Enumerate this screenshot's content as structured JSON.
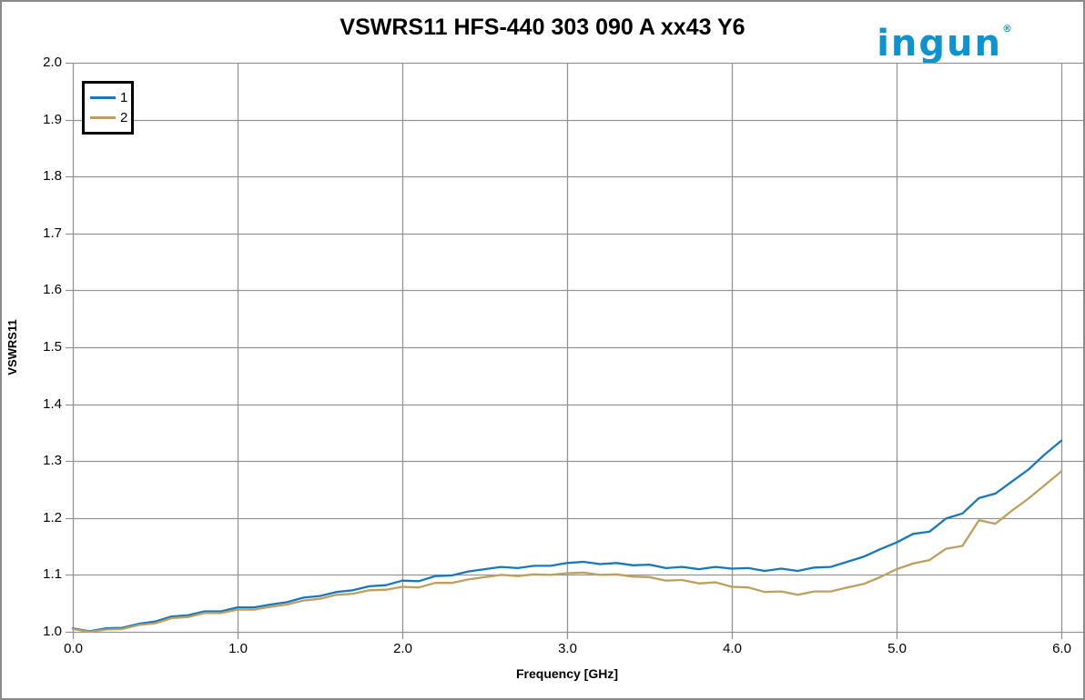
{
  "logo": {
    "text": "ingun",
    "registered_mark": "®",
    "color": "#0E93D1"
  },
  "chart_data": {
    "type": "line",
    "title": "VSWRS11 HFS-440 303 090 A xx43 Y6",
    "xlabel": "Frequency [GHz]",
    "ylabel": "VSWRS11",
    "xlim": [
      0.0,
      6.0
    ],
    "ylim": [
      1.0,
      2.0
    ],
    "x_ticks": [
      "0.0",
      "1.0",
      "2.0",
      "3.0",
      "4.0",
      "5.0",
      "6.0"
    ],
    "y_ticks": [
      "1.0",
      "1.1",
      "1.2",
      "1.3",
      "1.4",
      "1.5",
      "1.6",
      "1.7",
      "1.8",
      "1.9",
      "2.0"
    ],
    "grid": true,
    "grid_color": "#949494",
    "legend_position": "top-left",
    "x": [
      0.0,
      0.1,
      0.2,
      0.3,
      0.4,
      0.5,
      0.6,
      0.7,
      0.8,
      0.9,
      1.0,
      1.1,
      1.2,
      1.3,
      1.4,
      1.5,
      1.6,
      1.7,
      1.8,
      1.9,
      2.0,
      2.1,
      2.2,
      2.3,
      2.4,
      2.5,
      2.6,
      2.7,
      2.8,
      2.9,
      3.0,
      3.1,
      3.2,
      3.3,
      3.4,
      3.5,
      3.6,
      3.7,
      3.8,
      3.9,
      4.0,
      4.1,
      4.2,
      4.3,
      4.4,
      4.5,
      4.6,
      4.7,
      4.8,
      4.9,
      5.0,
      5.1,
      5.2,
      5.3,
      5.4,
      5.5,
      5.6,
      5.7,
      5.8,
      5.9,
      6.0
    ],
    "series": [
      {
        "name": "1",
        "color": "#1878BD",
        "values": [
          1.006,
          1.001,
          1.006,
          1.007,
          1.014,
          1.018,
          1.027,
          1.029,
          1.036,
          1.036,
          1.043,
          1.043,
          1.048,
          1.052,
          1.06,
          1.063,
          1.07,
          1.073,
          1.08,
          1.082,
          1.09,
          1.089,
          1.098,
          1.099,
          1.106,
          1.11,
          1.114,
          1.112,
          1.116,
          1.116,
          1.121,
          1.123,
          1.119,
          1.121,
          1.117,
          1.118,
          1.112,
          1.114,
          1.11,
          1.114,
          1.111,
          1.112,
          1.107,
          1.111,
          1.107,
          1.113,
          1.114,
          1.123,
          1.132,
          1.145,
          1.157,
          1.172,
          1.176,
          1.199,
          1.208,
          1.235,
          1.243,
          1.264,
          1.285,
          1.312,
          1.336
        ]
      },
      {
        "name": "2",
        "color": "#BF9F5D",
        "values": [
          1.005,
          1.0,
          1.004,
          1.005,
          1.012,
          1.015,
          1.024,
          1.026,
          1.033,
          1.033,
          1.039,
          1.039,
          1.044,
          1.048,
          1.055,
          1.058,
          1.065,
          1.067,
          1.073,
          1.074,
          1.079,
          1.078,
          1.086,
          1.086,
          1.092,
          1.096,
          1.1,
          1.098,
          1.101,
          1.1,
          1.103,
          1.104,
          1.1,
          1.101,
          1.097,
          1.096,
          1.09,
          1.091,
          1.085,
          1.087,
          1.079,
          1.078,
          1.07,
          1.071,
          1.065,
          1.071,
          1.071,
          1.078,
          1.084,
          1.096,
          1.11,
          1.12,
          1.126,
          1.146,
          1.151,
          1.196,
          1.19,
          1.213,
          1.234,
          1.258,
          1.282
        ]
      }
    ]
  }
}
